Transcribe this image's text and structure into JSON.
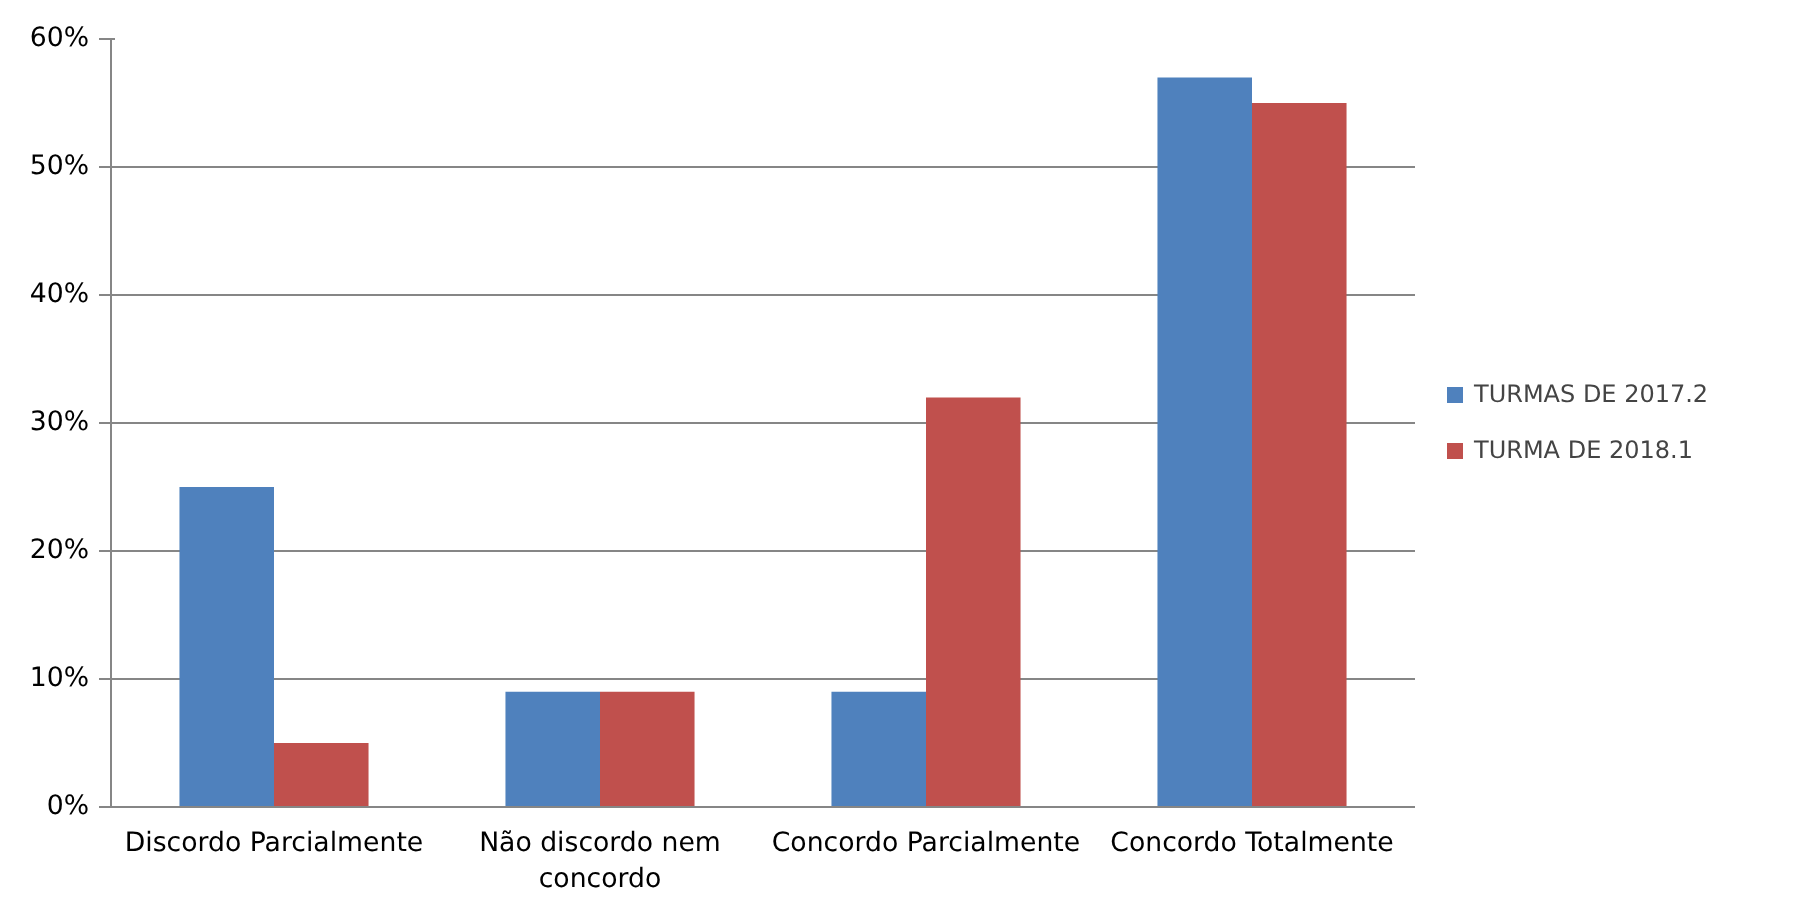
{
  "chart_data": {
    "type": "bar",
    "categories": [
      "Discordo Parcialmente",
      "Não discordo nem concordo",
      "Concordo Parcialmente",
      "Concordo Totalmente"
    ],
    "series": [
      {
        "name": "TURMAS DE 2017.2",
        "color": "#4f81bd",
        "values": [
          25,
          9,
          9,
          57
        ]
      },
      {
        "name": "TURMA DE 2018.1",
        "color": "#c0504d",
        "values": [
          5,
          9,
          32,
          55
        ]
      }
    ],
    "ylim": [
      0,
      60
    ],
    "yticks": [
      {
        "value": 0,
        "label": "0%"
      },
      {
        "value": 10,
        "label": "10%"
      },
      {
        "value": 20,
        "label": "20%"
      },
      {
        "value": 30,
        "label": "30%"
      },
      {
        "value": 40,
        "label": "40%"
      },
      {
        "value": 50,
        "label": "50%"
      },
      {
        "value": 60,
        "label": "60%"
      }
    ],
    "grid": "y",
    "legend": "right"
  }
}
